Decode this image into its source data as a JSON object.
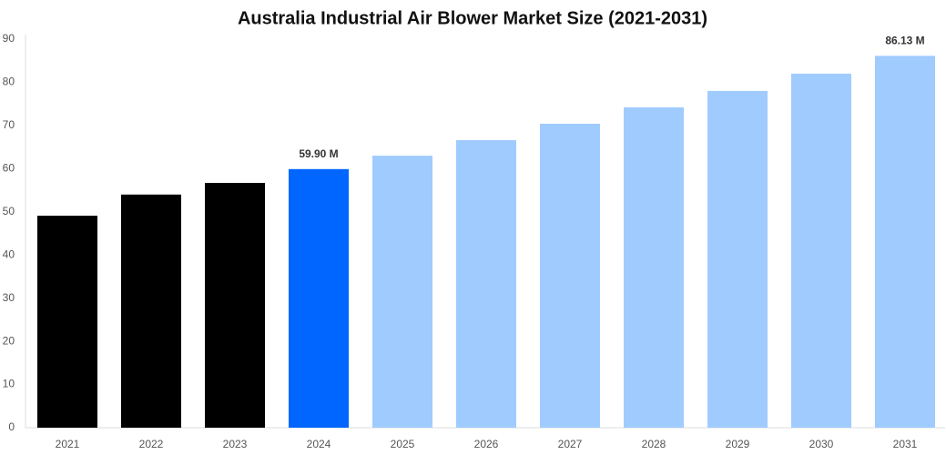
{
  "chart_data": {
    "type": "bar",
    "title": "Australia Industrial Air Blower Market Size (2021-2031)",
    "categories": [
      "2021",
      "2022",
      "2023",
      "2024",
      "2025",
      "2026",
      "2027",
      "2028",
      "2029",
      "2030",
      "2031"
    ],
    "values": [
      49.1,
      54.0,
      56.7,
      59.9,
      63.0,
      66.6,
      70.4,
      74.2,
      78.0,
      82.0,
      86.13
    ],
    "value_labels": [
      null,
      null,
      null,
      "59.90 M",
      null,
      null,
      null,
      null,
      null,
      null,
      "86.13 M"
    ],
    "colors": [
      "#000000",
      "#000000",
      "#000000",
      "#0066ff",
      "#a0cbff",
      "#a0cbff",
      "#a0cbff",
      "#a0cbff",
      "#a0cbff",
      "#a0cbff",
      "#a0cbff"
    ],
    "ylim": [
      0,
      90
    ],
    "yticks": [
      0,
      10,
      20,
      30,
      40,
      50,
      60,
      70,
      80,
      90
    ],
    "grid": false
  }
}
